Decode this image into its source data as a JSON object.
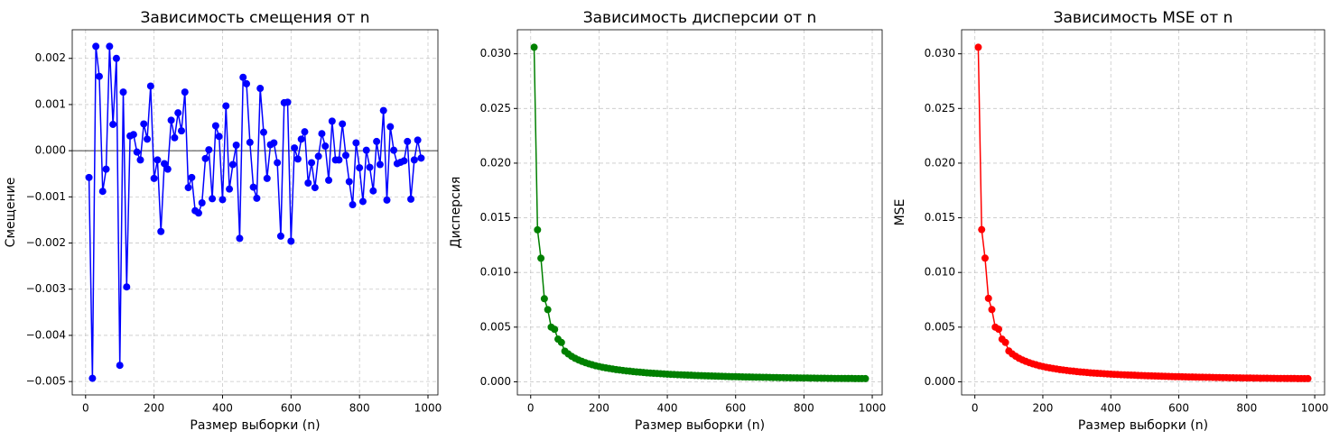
{
  "chart_data": [
    {
      "type": "line",
      "title": "Зависимость смещения от n",
      "x_label": "Размер выборки (n)",
      "y_label": "Смещение",
      "color": "#0000ff",
      "grid": true,
      "reference_line": 0,
      "x": [
        10,
        20,
        30,
        40,
        50,
        60,
        70,
        80,
        90,
        100,
        110,
        120,
        130,
        140,
        150,
        160,
        170,
        180,
        190,
        200,
        210,
        220,
        230,
        240,
        250,
        260,
        270,
        280,
        290,
        300,
        310,
        320,
        330,
        340,
        350,
        360,
        370,
        380,
        390,
        400,
        410,
        420,
        430,
        440,
        450,
        460,
        470,
        480,
        490,
        500,
        510,
        520,
        530,
        540,
        550,
        560,
        570,
        580,
        590,
        600,
        610,
        620,
        630,
        640,
        650,
        660,
        670,
        680,
        690,
        700,
        710,
        720,
        730,
        740,
        750,
        760,
        770,
        780,
        790,
        800,
        810,
        820,
        830,
        840,
        850,
        860,
        870,
        880,
        890,
        900,
        910,
        920,
        930,
        940,
        950,
        960,
        970,
        980
      ],
      "values": [
        -0.00058,
        -0.00493,
        0.00226,
        0.00161,
        -0.00088,
        -0.0004,
        0.00226,
        0.00057,
        0.002,
        -0.00465,
        0.00127,
        -0.00295,
        0.00032,
        0.00035,
        -3e-05,
        -0.0002,
        0.00058,
        0.00025,
        0.0014,
        -0.0006,
        -0.0002,
        -0.00175,
        -0.00028,
        -0.0004,
        0.00066,
        0.00028,
        0.00082,
        0.00043,
        0.00127,
        -0.0008,
        -0.00058,
        -0.0013,
        -0.00135,
        -0.00113,
        -0.00017,
        2e-05,
        -0.00104,
        0.00054,
        0.00031,
        -0.00106,
        0.00097,
        -0.00083,
        -0.0003,
        0.00012,
        -0.0019,
        0.00159,
        0.00145,
        0.00018,
        -0.00079,
        -0.00103,
        0.00135,
        0.0004,
        -0.0006,
        0.00013,
        0.00017,
        -0.00026,
        -0.00185,
        0.00104,
        0.00105,
        -0.00196,
        6e-05,
        -0.00018,
        0.00025,
        0.00041,
        -0.0007,
        -0.00026,
        -0.0008,
        -0.00012,
        0.00037,
        0.0001,
        -0.00064,
        0.00064,
        -0.0002,
        -0.0002,
        0.00058,
        -0.0001,
        -0.00067,
        -0.00117,
        0.00017,
        -0.00037,
        -0.0011,
        1e-05,
        -0.00036,
        -0.00087,
        0.0002,
        -0.0003,
        0.00087,
        -0.00107,
        0.00052,
        1e-05,
        -0.00028,
        -0.00025,
        -0.00022,
        0.0002,
        -0.00105,
        -0.0002,
        0.00023,
        -0.00016
      ],
      "xlim": [
        -39,
        1029
      ],
      "xticks": [
        0,
        200,
        400,
        600,
        800,
        1000
      ],
      "ylim": [
        -0.00529,
        0.00262
      ],
      "yticks": [
        {
          "value": -0.005,
          "label": "−0.005"
        },
        {
          "value": -0.004,
          "label": "−0.004"
        },
        {
          "value": -0.003,
          "label": "−0.003"
        },
        {
          "value": -0.002,
          "label": "−0.002"
        },
        {
          "value": -0.001,
          "label": "−0.001"
        },
        {
          "value": 0,
          "label": "0.000"
        },
        0.001,
        0.002
      ]
    },
    {
      "type": "line",
      "title": "Зависимость дисперсии от n",
      "x_label": "Размер выборки (n)",
      "y_label": "Дисперсия",
      "color": "#008000",
      "grid": true,
      "x": [
        10,
        20,
        30,
        40,
        50,
        60,
        70,
        80,
        90,
        100,
        110,
        120,
        130,
        140,
        150,
        160,
        170,
        180,
        190,
        200,
        210,
        220,
        230,
        240,
        250,
        260,
        270,
        280,
        290,
        300,
        310,
        320,
        330,
        340,
        350,
        360,
        370,
        380,
        390,
        400,
        410,
        420,
        430,
        440,
        450,
        460,
        470,
        480,
        490,
        500,
        510,
        520,
        530,
        540,
        550,
        560,
        570,
        580,
        590,
        600,
        610,
        620,
        630,
        640,
        650,
        660,
        670,
        680,
        690,
        700,
        710,
        720,
        730,
        740,
        750,
        760,
        770,
        780,
        790,
        800,
        810,
        820,
        830,
        840,
        850,
        860,
        870,
        880,
        890,
        900,
        910,
        920,
        930,
        940,
        950,
        960,
        970,
        980
      ],
      "values": [
        0.0306,
        0.0139,
        0.0113,
        0.0076,
        0.0066,
        0.005,
        0.0048,
        0.0039,
        0.0036,
        0.0028,
        0.00255,
        0.00233,
        0.00215,
        0.002,
        0.00187,
        0.00175,
        0.00165,
        0.00156,
        0.00147,
        0.0014,
        0.00133,
        0.00127,
        0.00122,
        0.00117,
        0.00112,
        0.00108,
        0.00104,
        0.001,
        0.00097,
        0.00093,
        0.0009,
        0.00088,
        0.00085,
        0.00082,
        0.0008,
        0.00078,
        0.00076,
        0.00074,
        0.00072,
        0.0007,
        0.00068,
        0.00067,
        0.00065,
        0.00064,
        0.00062,
        0.00061,
        0.0006,
        0.00058,
        0.00057,
        0.00056,
        0.00055,
        0.00054,
        0.00053,
        0.00052,
        0.00051,
        0.0005,
        0.00049,
        0.00048,
        0.00047,
        0.00047,
        0.00046,
        0.00045,
        0.00044,
        0.00044,
        0.00043,
        0.00042,
        0.00042,
        0.00041,
        0.00041,
        0.0004,
        0.00039,
        0.00039,
        0.00038,
        0.00038,
        0.00037,
        0.00037,
        0.00036,
        0.00036,
        0.00035,
        0.00035,
        0.00035,
        0.00034,
        0.00034,
        0.00033,
        0.00033,
        0.00033,
        0.00032,
        0.00032,
        0.00031,
        0.00031,
        0.00031,
        0.0003,
        0.0003,
        0.0003,
        0.00029,
        0.00029,
        0.00029,
        0.00029
      ],
      "xlim": [
        -39,
        1029
      ],
      "xticks": [
        0,
        200,
        400,
        600,
        800,
        1000
      ],
      "ylim": [
        -0.0012,
        0.0322
      ],
      "yticks": [
        {
          "value": 0,
          "label": "0.000"
        },
        0.005,
        {
          "value": 0.01,
          "label": "0.010"
        },
        0.015,
        {
          "value": 0.02,
          "label": "0.020"
        },
        0.025,
        {
          "value": 0.03,
          "label": "0.030"
        }
      ]
    },
    {
      "type": "line",
      "title": "Зависимость MSE от n",
      "x_label": "Размер выборки (n)",
      "y_label": "MSE",
      "color": "#ff0000",
      "grid": true,
      "x": [
        10,
        20,
        30,
        40,
        50,
        60,
        70,
        80,
        90,
        100,
        110,
        120,
        130,
        140,
        150,
        160,
        170,
        180,
        190,
        200,
        210,
        220,
        230,
        240,
        250,
        260,
        270,
        280,
        290,
        300,
        310,
        320,
        330,
        340,
        350,
        360,
        370,
        380,
        390,
        400,
        410,
        420,
        430,
        440,
        450,
        460,
        470,
        480,
        490,
        500,
        510,
        520,
        530,
        540,
        550,
        560,
        570,
        580,
        590,
        600,
        610,
        620,
        630,
        640,
        650,
        660,
        670,
        680,
        690,
        700,
        710,
        720,
        730,
        740,
        750,
        760,
        770,
        780,
        790,
        800,
        810,
        820,
        830,
        840,
        850,
        860,
        870,
        880,
        890,
        900,
        910,
        920,
        930,
        940,
        950,
        960,
        970,
        980
      ],
      "values": [
        0.0306,
        0.01392,
        0.01131,
        0.00763,
        0.00661,
        0.005,
        0.00481,
        0.0039,
        0.0036,
        0.00282,
        0.00255,
        0.00234,
        0.00215,
        0.002,
        0.00187,
        0.00175,
        0.00165,
        0.00156,
        0.00147,
        0.0014,
        0.00133,
        0.00127,
        0.00122,
        0.00117,
        0.00112,
        0.00108,
        0.00104,
        0.001,
        0.00097,
        0.00093,
        0.0009,
        0.00088,
        0.00085,
        0.00082,
        0.0008,
        0.00078,
        0.00076,
        0.00074,
        0.00072,
        0.0007,
        0.00068,
        0.00067,
        0.00065,
        0.00064,
        0.00062,
        0.00061,
        0.0006,
        0.00058,
        0.00057,
        0.00056,
        0.00055,
        0.00054,
        0.00053,
        0.00052,
        0.00051,
        0.0005,
        0.00049,
        0.00048,
        0.00047,
        0.00047,
        0.00046,
        0.00045,
        0.00044,
        0.00044,
        0.00043,
        0.00042,
        0.00042,
        0.00041,
        0.00041,
        0.0004,
        0.00039,
        0.00039,
        0.00038,
        0.00038,
        0.00037,
        0.00037,
        0.00036,
        0.00036,
        0.00035,
        0.00035,
        0.00035,
        0.00034,
        0.00034,
        0.00033,
        0.00033,
        0.00033,
        0.00032,
        0.00032,
        0.00031,
        0.00031,
        0.00031,
        0.0003,
        0.0003,
        0.0003,
        0.00029,
        0.00029,
        0.00029,
        0.00029
      ],
      "xlim": [
        -39,
        1029
      ],
      "xticks": [
        0,
        200,
        400,
        600,
        800,
        1000
      ],
      "ylim": [
        -0.0012,
        0.0322
      ],
      "yticks": [
        {
          "value": 0,
          "label": "0.000"
        },
        0.005,
        {
          "value": 0.01,
          "label": "0.010"
        },
        0.015,
        {
          "value": 0.02,
          "label": "0.020"
        },
        0.025,
        {
          "value": 0.03,
          "label": "0.030"
        }
      ]
    }
  ]
}
